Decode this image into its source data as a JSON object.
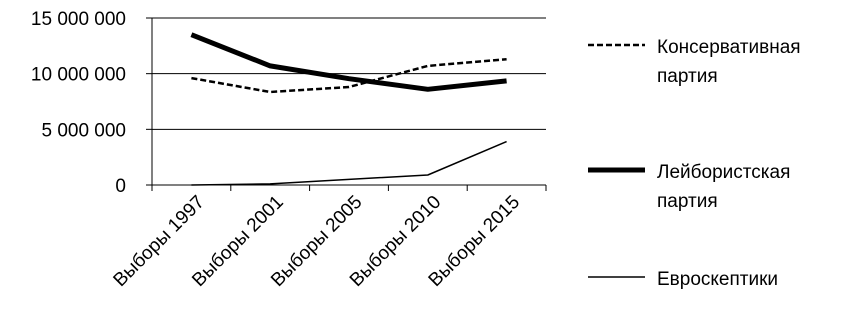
{
  "chart_data": {
    "type": "line",
    "title": "",
    "xlabel": "",
    "ylabel": "",
    "categories": [
      "Выборы 1997",
      "Выборы 2001",
      "Выборы 2005",
      "Выборы 2010",
      "Выборы 2015"
    ],
    "ylim": [
      0,
      15000000
    ],
    "yticks": [
      0,
      5000000,
      10000000,
      15000000
    ],
    "ytick_labels": [
      "0",
      "5 000 000",
      "10 000 000",
      "15 000 000"
    ],
    "grid": "horizontal",
    "legend_position": "right",
    "series": [
      {
        "name": "Консервативная партия",
        "name_lines": [
          "Консервативная",
          "партия"
        ],
        "values": [
          9600000,
          8350000,
          8800000,
          10700000,
          11300000
        ],
        "color": "#000000",
        "style": "dashed"
      },
      {
        "name": "Лейбористская партия",
        "name_lines": [
          "Лейбористская",
          "партия"
        ],
        "values": [
          13500000,
          10700000,
          9550000,
          8600000,
          9350000
        ],
        "color": "#000000",
        "style": "thick"
      },
      {
        "name": "Евроскептики",
        "name_lines": [
          "Евроскептики"
        ],
        "values": [
          0,
          100000,
          500000,
          900000,
          3900000
        ],
        "color": "#000000",
        "style": "thin"
      }
    ]
  }
}
